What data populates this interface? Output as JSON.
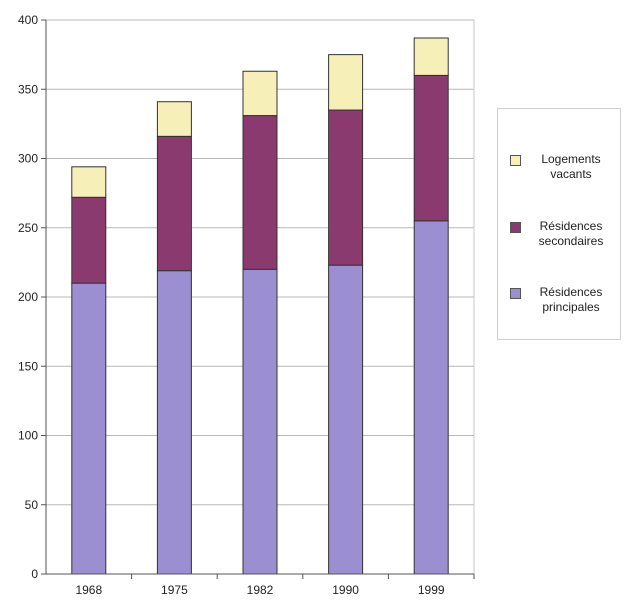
{
  "chart_data": {
    "type": "bar",
    "stacked": true,
    "categories": [
      "1968",
      "1975",
      "1982",
      "1990",
      "1999"
    ],
    "series": [
      {
        "name": "Résidences principales",
        "values": [
          210,
          219,
          220,
          223,
          255
        ],
        "color": "#9b8fd1"
      },
      {
        "name": "Résidences secondaires",
        "values": [
          62,
          97,
          111,
          112,
          105
        ],
        "color": "#8a3a6e"
      },
      {
        "name": "Logements vacants",
        "values": [
          22,
          25,
          32,
          40,
          27
        ],
        "color": "#f7efb8"
      }
    ],
    "ylim": [
      0,
      400
    ],
    "yticks": [
      "0",
      "50",
      "100",
      "150",
      "200",
      "250",
      "300",
      "350",
      "400"
    ],
    "grid": true,
    "legend_position": "right"
  },
  "legend": {
    "items": [
      {
        "label": "Logements vacants",
        "color": "#f7efb8"
      },
      {
        "label": "Résidences secondaires",
        "color": "#8a3a6e"
      },
      {
        "label": "Résidences principales",
        "color": "#9b8fd1"
      }
    ]
  }
}
